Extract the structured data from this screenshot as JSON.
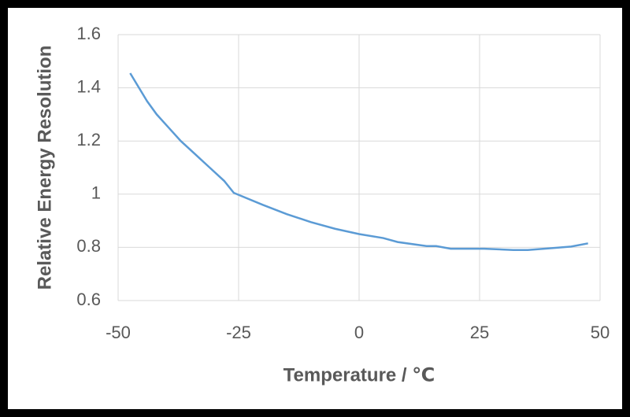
{
  "chart_data": {
    "type": "line",
    "x_label": "Temperature / ℃",
    "y_label": "Relative Energy Resolution",
    "xlim": [
      -50,
      50
    ],
    "xticks": [
      -50,
      -25,
      0,
      25,
      50
    ],
    "ylim": [
      0.6,
      1.6
    ],
    "yticks": [
      0.6,
      0.8,
      1,
      1.2,
      1.4,
      1.6
    ],
    "grid": true,
    "x": [
      -47.5,
      -46,
      -44,
      -42,
      -40,
      -37,
      -34,
      -31,
      -28,
      -26,
      -20,
      -15,
      -10,
      -5,
      0,
      5,
      8,
      14,
      16,
      19,
      26,
      32,
      35,
      40,
      44,
      47.5
    ],
    "series": [
      {
        "color": "#5b9bd5",
        "values": [
          1.455,
          1.41,
          1.35,
          1.3,
          1.26,
          1.2,
          1.15,
          1.1,
          1.05,
          1.005,
          0.96,
          0.925,
          0.895,
          0.87,
          0.85,
          0.835,
          0.82,
          0.805,
          0.805,
          0.795,
          0.795,
          0.79,
          0.79,
          0.797,
          0.803,
          0.815
        ]
      }
    ]
  }
}
